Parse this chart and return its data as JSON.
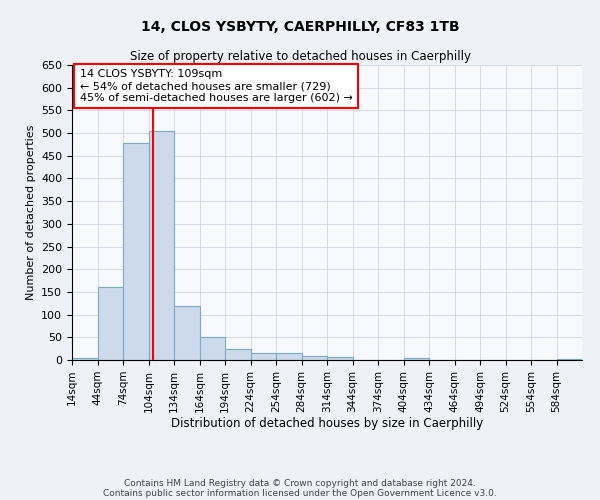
{
  "title": "14, CLOS YSBYTY, CAERPHILLY, CF83 1TB",
  "subtitle": "Size of property relative to detached houses in Caerphilly",
  "xlabel": "Distribution of detached houses by size in Caerphilly",
  "ylabel": "Number of detached properties",
  "bar_edges": [
    14,
    44,
    74,
    104,
    134,
    164,
    194,
    224,
    254,
    284,
    314,
    344,
    374,
    404,
    434,
    464,
    494,
    524,
    554,
    584,
    614
  ],
  "bar_heights": [
    5,
    160,
    478,
    504,
    120,
    50,
    25,
    15,
    15,
    8,
    7,
    0,
    0,
    5,
    0,
    0,
    0,
    0,
    0,
    3
  ],
  "bar_color": "#ccdaeb",
  "bar_edge_color": "#7aaac8",
  "vline_x": 109,
  "vline_color": "red",
  "annotation_line1": "14 CLOS YSBYTY: 109sqm",
  "annotation_line2": "← 54% of detached houses are smaller (729)",
  "annotation_line3": "45% of semi-detached houses are larger (602) →",
  "annotation_box_color": "white",
  "annotation_box_edge": "red",
  "ylim": [
    0,
    650
  ],
  "yticks": [
    0,
    50,
    100,
    150,
    200,
    250,
    300,
    350,
    400,
    450,
    500,
    550,
    600,
    650
  ],
  "footer_line1": "Contains HM Land Registry data © Crown copyright and database right 2024.",
  "footer_line2": "Contains public sector information licensed under the Open Government Licence v3.0.",
  "background_color": "#eef2f7",
  "plot_background": "#f7f9fc",
  "grid_color": "#c5d0de"
}
